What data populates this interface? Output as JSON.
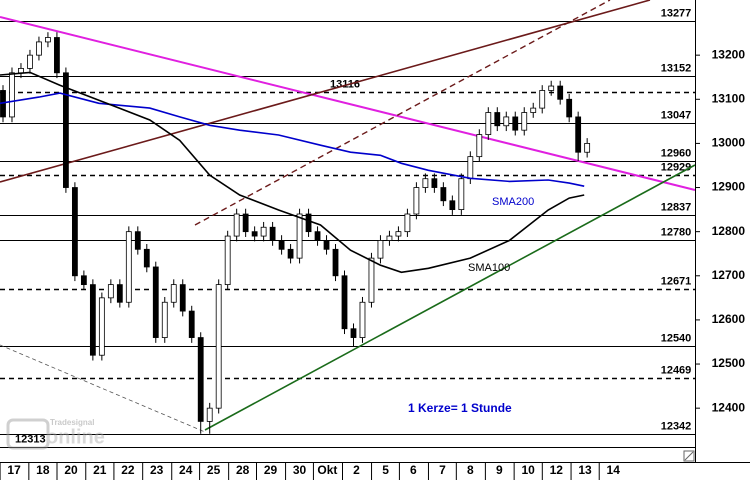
{
  "chart_data": {
    "type": "candlestick",
    "xlim": [
      0,
      232
    ],
    "ylim": [
      12278,
      13325
    ],
    "yticks": [
      12400,
      12500,
      12600,
      12700,
      12800,
      12900,
      13000,
      13100,
      13200
    ],
    "xticks": [
      {
        "value": 4.7,
        "label": "17"
      },
      {
        "value": 14.3,
        "label": "18"
      },
      {
        "value": 23.7,
        "label": "20"
      },
      {
        "value": 33.3,
        "label": "21"
      },
      {
        "value": 42.7,
        "label": "22"
      },
      {
        "value": 52.3,
        "label": "23"
      },
      {
        "value": 62,
        "label": "24"
      },
      {
        "value": 71.3,
        "label": "25"
      },
      {
        "value": 81,
        "label": "28"
      },
      {
        "value": 90.3,
        "label": "29"
      },
      {
        "value": 100,
        "label": "30"
      },
      {
        "value": 109.3,
        "label": "Okt"
      },
      {
        "value": 119,
        "label": "2"
      },
      {
        "value": 128.7,
        "label": "5"
      },
      {
        "value": 138,
        "label": "6"
      },
      {
        "value": 147.7,
        "label": "7"
      },
      {
        "value": 157,
        "label": "8"
      },
      {
        "value": 166.7,
        "label": "9"
      },
      {
        "value": 176.3,
        "label": "10"
      },
      {
        "value": 185.7,
        "label": "12"
      },
      {
        "value": 195.3,
        "label": "13"
      },
      {
        "value": 204.7,
        "label": "14"
      }
    ],
    "x": [
      1,
      4,
      7,
      10,
      13,
      16,
      19,
      22,
      25,
      28,
      31,
      34,
      37,
      40,
      43,
      46,
      49,
      52,
      55,
      58,
      61,
      64,
      67,
      70,
      73,
      76,
      79,
      82,
      85,
      88,
      91,
      94,
      97,
      100,
      103,
      106,
      109,
      112,
      115,
      118,
      121,
      124,
      127,
      130,
      133,
      136,
      139,
      142,
      145,
      148,
      151,
      154,
      157,
      160,
      163,
      166,
      169,
      172,
      175,
      178,
      181,
      184,
      187,
      190,
      193,
      196
    ],
    "open": [
      13120,
      13060,
      13160,
      13170,
      13200,
      13230,
      13240,
      13160,
      12900,
      12700,
      12680,
      12520,
      12650,
      12680,
      12640,
      12800,
      12760,
      12720,
      12560,
      12640,
      12680,
      12620,
      12560,
      12370,
      12400,
      12680,
      12790,
      12840,
      12800,
      12790,
      12810,
      12780,
      12760,
      12740,
      12840,
      12800,
      12780,
      12760,
      12700,
      12580,
      12560,
      12640,
      12740,
      12780,
      12790,
      12800,
      12840,
      12900,
      12920,
      12900,
      12870,
      12850,
      12920,
      12970,
      13020,
      13070,
      13040,
      13060,
      13030,
      13070,
      13080,
      13120,
      13130,
      13100,
      13060,
      12980
    ],
    "high": [
      13132,
      13172,
      13182,
      13212,
      13242,
      13252,
      13252,
      13172,
      12912,
      12712,
      12692,
      12662,
      12692,
      12692,
      12812,
      12812,
      12772,
      12732,
      12652,
      12692,
      12692,
      12632,
      12572,
      12412,
      12692,
      12802,
      12852,
      12852,
      12812,
      12822,
      12822,
      12792,
      12772,
      12852,
      12852,
      12812,
      12792,
      12772,
      12712,
      12592,
      12652,
      12752,
      12792,
      12802,
      12812,
      12852,
      12912,
      12932,
      12932,
      12912,
      12882,
      12932,
      12982,
      13032,
      13082,
      13082,
      13072,
      13072,
      13082,
      13092,
      13132,
      13142,
      13142,
      13112,
      13072,
      13012
    ],
    "low": [
      13048,
      13048,
      13148,
      13158,
      13188,
      13218,
      13148,
      12888,
      12688,
      12668,
      12508,
      12508,
      12638,
      12628,
      12628,
      12748,
      12708,
      12548,
      12548,
      12628,
      12608,
      12548,
      12342,
      12342,
      12388,
      12668,
      12778,
      12788,
      12778,
      12778,
      12768,
      12748,
      12728,
      12728,
      12788,
      12768,
      12748,
      12688,
      12568,
      12540,
      12548,
      12628,
      12728,
      12768,
      12778,
      12788,
      12828,
      12888,
      12888,
      12858,
      12838,
      12838,
      12908,
      12958,
      13008,
      13028,
      13028,
      13018,
      13018,
      13058,
      13068,
      13108,
      13088,
      13048,
      12960,
      12968
    ],
    "close": [
      13060,
      13160,
      13170,
      13200,
      13230,
      13240,
      13160,
      12900,
      12700,
      12680,
      12520,
      12650,
      12680,
      12640,
      12800,
      12760,
      12720,
      12560,
      12640,
      12680,
      12620,
      12560,
      12370,
      12400,
      12680,
      12790,
      12840,
      12800,
      12790,
      12810,
      12780,
      12760,
      12740,
      12840,
      12800,
      12780,
      12760,
      12700,
      12580,
      12560,
      12640,
      12740,
      12780,
      12790,
      12800,
      12840,
      12900,
      12920,
      12900,
      12870,
      12850,
      12920,
      12970,
      13020,
      13070,
      13040,
      13060,
      13030,
      13070,
      13080,
      13120,
      13130,
      13100,
      13060,
      12980,
      13000
    ],
    "up_color": "#ffffff",
    "down_color": "#000000",
    "series": [
      {
        "name": "SMA200",
        "color": "#0000cc",
        "x": [
          0,
          13,
          20,
          33,
          50,
          60,
          70,
          80,
          93,
          107,
          117,
          127,
          134,
          143,
          157,
          170,
          183,
          190,
          195
        ],
        "values": [
          13091,
          13105,
          13114,
          13091,
          13080,
          13060,
          13041,
          13030,
          13019,
          12996,
          12980,
          12973,
          12955,
          12939,
          12921,
          12914,
          12917,
          12910,
          12903
        ]
      },
      {
        "name": "SMA100",
        "color": "#000000",
        "x": [
          0,
          10,
          20,
          33,
          50,
          60,
          70,
          80,
          93,
          107,
          117,
          127,
          134,
          143,
          157,
          170,
          183,
          190,
          195
        ],
        "values": [
          13155,
          13161,
          13132,
          13098,
          13053,
          13007,
          12928,
          12883,
          12849,
          12815,
          12758,
          12724,
          12708,
          12717,
          12740,
          12780,
          12849,
          12876,
          12883
        ]
      }
    ],
    "levels": [
      {
        "value": 13277,
        "style": "solid",
        "label_position": "right"
      },
      {
        "value": 13152,
        "style": "solid",
        "label_position": "right"
      },
      {
        "value": 13116,
        "style": "dashed",
        "label_position": "center"
      },
      {
        "value": 13047,
        "style": "solid",
        "label_position": "right"
      },
      {
        "value": 12960,
        "style": "solid",
        "label_position": "right"
      },
      {
        "value": 12929,
        "style": "dashed",
        "label_position": "right"
      },
      {
        "value": 12837,
        "style": "solid",
        "label_position": "right"
      },
      {
        "value": 12780,
        "style": "solid",
        "label_position": "right"
      },
      {
        "value": 12671,
        "style": "dashed",
        "label_position": "right"
      },
      {
        "value": 12540,
        "style": "solid",
        "label_position": "right"
      },
      {
        "value": 12469,
        "style": "dashed",
        "label_position": "right"
      },
      {
        "value": 12342,
        "style": "solid",
        "label_position": "right"
      },
      {
        "value": 12313,
        "style": "solid",
        "label_position": "left"
      }
    ],
    "annotation": "1 Kerze= 1 Stunde",
    "watermark": {
      "brand": "Tradesignal",
      "product": "online"
    }
  }
}
